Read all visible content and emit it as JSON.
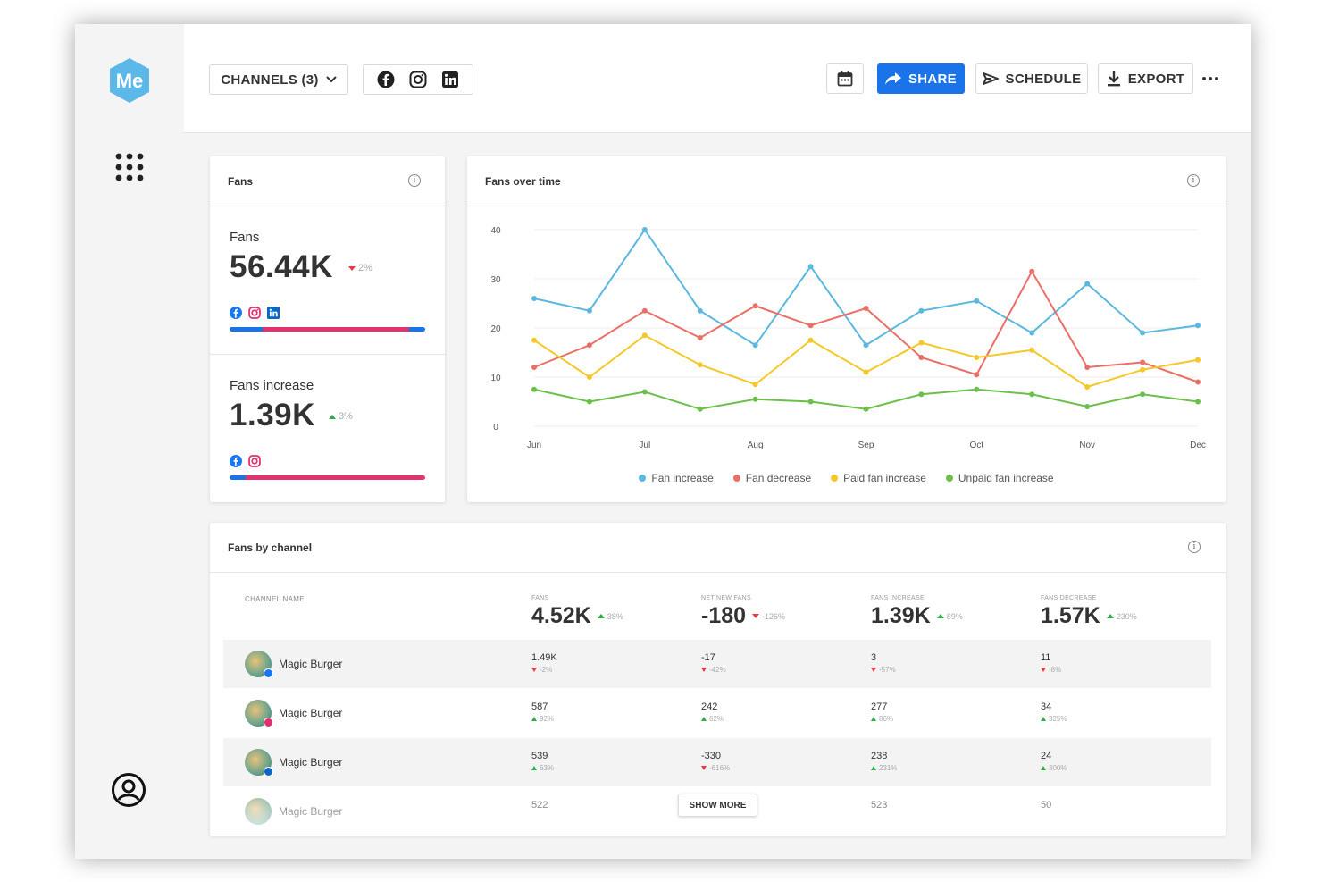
{
  "app": {
    "logo_text": "Me"
  },
  "toolbar": {
    "channels_label": "CHANNELS (3)",
    "share_label": "SHARE",
    "schedule_label": "SCHEDULE",
    "export_label": "EXPORT"
  },
  "colors": {
    "accent": "#1a73e8",
    "fan_increase": "#5bb8de",
    "fan_decrease": "#ea6f66",
    "paid_fan_increase": "#f5c829",
    "unpaid_fan_increase": "#6cbf4a",
    "facebook": "#1877f2",
    "instagram": "#e1306c",
    "linkedin": "#0a66c2"
  },
  "fans_card": {
    "title": "Fans",
    "fans": {
      "label": "Fans",
      "value": "56.44K",
      "delta": "2%",
      "direction": "down",
      "bar": [
        {
          "channel": "facebook",
          "share": 0.17
        },
        {
          "channel": "instagram",
          "share": 0.75
        },
        {
          "channel": "linkedin",
          "share": 0.08
        }
      ]
    },
    "increase": {
      "label": "Fans increase",
      "value": "1.39K",
      "delta": "3%",
      "direction": "up",
      "bar": [
        {
          "channel": "facebook",
          "share": 0.08
        },
        {
          "channel": "instagram",
          "share": 0.92
        }
      ]
    }
  },
  "chart_card": {
    "title": "Fans over time"
  },
  "chart_data": {
    "type": "line",
    "title": "Fans over time",
    "x_ticks": [
      "Jun",
      "Jul",
      "Aug",
      "Sep",
      "Oct",
      "Nov",
      "Dec"
    ],
    "ylim": [
      0,
      40
    ],
    "y_ticks": [
      "40",
      "30",
      "20",
      "10",
      "0"
    ],
    "grid": true,
    "legend_position": "bottom",
    "x": [
      0,
      0.5,
      1,
      1.5,
      2,
      2.5,
      3,
      3.5,
      4,
      4.5,
      5,
      5.5,
      6
    ],
    "series": [
      {
        "name": "Fan increase",
        "values": [
          26,
          23.5,
          40,
          23.5,
          16.5,
          32.5,
          16.5,
          23.5,
          25.5,
          19,
          29,
          19,
          20.5
        ]
      },
      {
        "name": "Fan decrease",
        "values": [
          12,
          16.5,
          23.5,
          18,
          24.5,
          20.5,
          24,
          14,
          10.5,
          31.5,
          12,
          13,
          9
        ]
      },
      {
        "name": "Paid fan increase",
        "values": [
          17.5,
          10,
          18.5,
          12.5,
          8.5,
          17.5,
          11,
          17,
          14,
          15.5,
          8,
          11.5,
          13.5
        ]
      },
      {
        "name": "Unpaid fan increase",
        "values": [
          7.5,
          5,
          7,
          3.5,
          5.5,
          5,
          3.5,
          6.5,
          7.5,
          6.5,
          4,
          6.5,
          5
        ]
      }
    ]
  },
  "table": {
    "title": "Fans by channel",
    "channel_header": "CHANNEL NAME",
    "columns": [
      {
        "label": "FANS",
        "total": "4.52K",
        "delta": "38%",
        "direction": "up"
      },
      {
        "label": "NET NEW FANS",
        "total": "-180",
        "delta": "-126%",
        "direction": "down"
      },
      {
        "label": "FANS INCREASE",
        "total": "1.39K",
        "delta": "89%",
        "direction": "up"
      },
      {
        "label": "FANS DECREASE",
        "total": "1.57K",
        "delta": "230%",
        "direction": "up"
      }
    ],
    "rows": [
      {
        "name": "Magic Burger",
        "channel": "facebook",
        "cells": [
          {
            "v": "1.49K",
            "d": "-2%",
            "dir": "down"
          },
          {
            "v": "-17",
            "d": "-42%",
            "dir": "down"
          },
          {
            "v": "3",
            "d": "-57%",
            "dir": "down"
          },
          {
            "v": "11",
            "d": "-8%",
            "dir": "down"
          }
        ]
      },
      {
        "name": "Magic Burger",
        "channel": "instagram",
        "cells": [
          {
            "v": "587",
            "d": "92%",
            "dir": "up"
          },
          {
            "v": "242",
            "d": "62%",
            "dir": "up"
          },
          {
            "v": "277",
            "d": "86%",
            "dir": "up"
          },
          {
            "v": "34",
            "d": "325%",
            "dir": "up"
          }
        ]
      },
      {
        "name": "Magic Burger",
        "channel": "linkedin",
        "cells": [
          {
            "v": "539",
            "d": "63%",
            "dir": "up"
          },
          {
            "v": "-330",
            "d": "-616%",
            "dir": "down"
          },
          {
            "v": "238",
            "d": "231%",
            "dir": "up"
          },
          {
            "v": "24",
            "d": "300%",
            "dir": "up"
          }
        ]
      },
      {
        "name": "Magic Burger",
        "channel": "",
        "cells": [
          {
            "v": "522",
            "d": "",
            "dir": "up"
          },
          {
            "v": "",
            "d": "",
            "dir": "up"
          },
          {
            "v": "523",
            "d": "",
            "dir": "up"
          },
          {
            "v": "50",
            "d": "",
            "dir": "up"
          }
        ]
      }
    ],
    "show_more_label": "SHOW MORE"
  }
}
